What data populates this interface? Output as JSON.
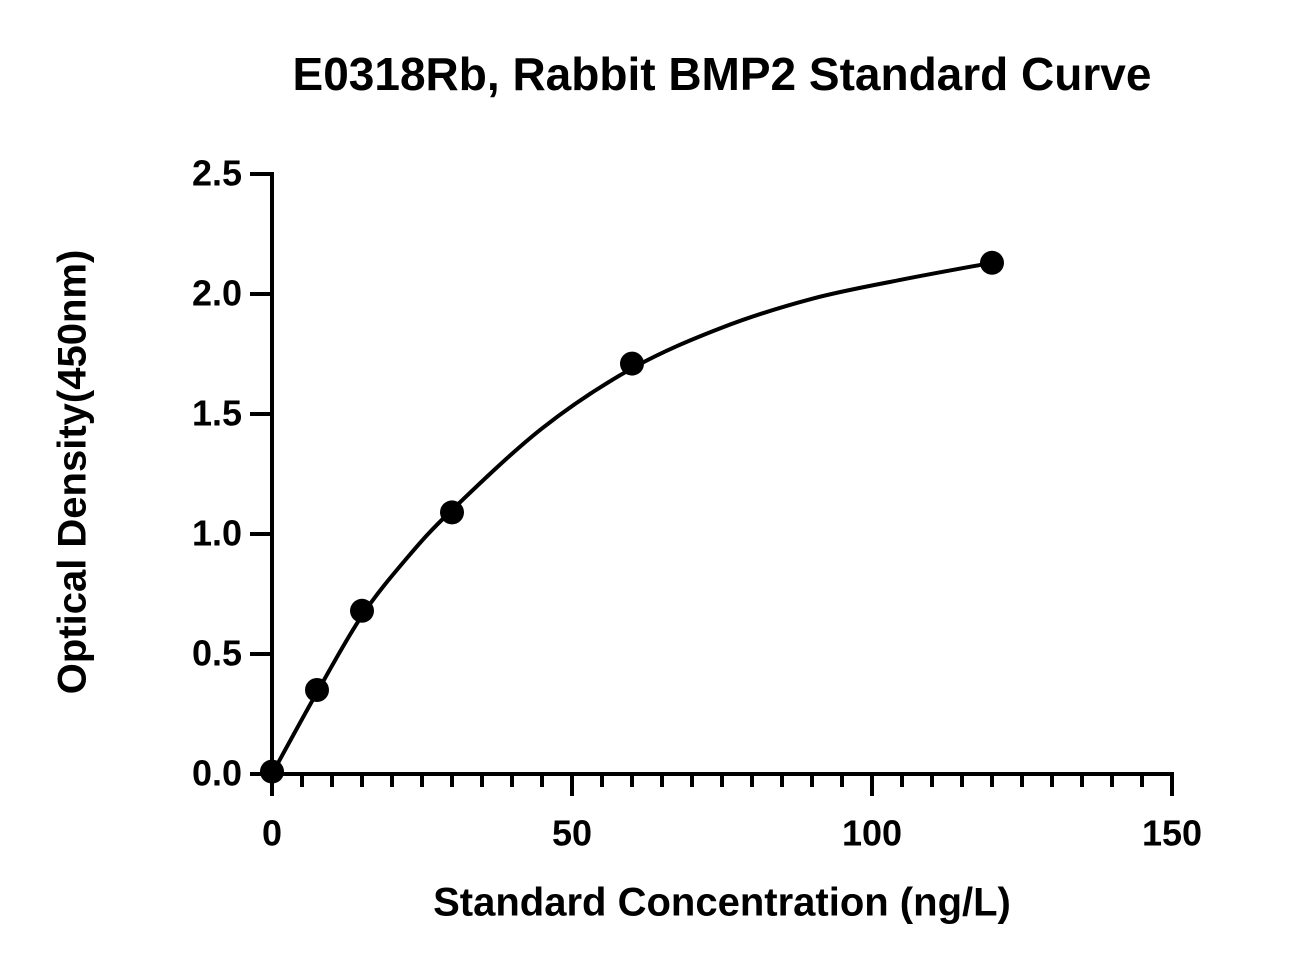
{
  "chart_data": {
    "type": "scatter",
    "title": "E0318Rb, Rabbit BMP2 Standard Curve",
    "x_label": "Standard Concentration (ng/L)",
    "y_label": "Optical Density(450nm)",
    "x": [
      0,
      7.5,
      15,
      30,
      60,
      120
    ],
    "values": [
      0.01,
      0.35,
      0.68,
      1.09,
      1.71,
      2.13
    ],
    "color": "#000000",
    "fit": {
      "x": [
        0,
        7.5,
        15,
        22.5,
        30,
        45,
        60,
        75,
        90,
        105,
        120
      ],
      "values": [
        0,
        0.34,
        0.66,
        0.9,
        1.1,
        1.44,
        1.69,
        1.86,
        1.98,
        2.06,
        2.13
      ]
    },
    "xlim": [
      0,
      150
    ],
    "xticks": [
      0,
      50,
      100,
      150
    ],
    "xminorticks": [
      5,
      10,
      15,
      20,
      25,
      30,
      35,
      40,
      45,
      55,
      60,
      65,
      70,
      75,
      80,
      85,
      90,
      95,
      105,
      110,
      115,
      120,
      125,
      130,
      135,
      140,
      145
    ],
    "ylim": [
      0,
      2.5
    ],
    "yticks": [
      {
        "value": 0,
        "label": "0.0"
      },
      {
        "value": 0.5,
        "label": "0.5"
      },
      {
        "value": 1,
        "label": "1.0"
      },
      {
        "value": 1.5,
        "label": "1.5"
      },
      {
        "value": 2,
        "label": "2.0"
      },
      {
        "value": 2.5,
        "label": "2.5"
      }
    ],
    "grid": false
  }
}
